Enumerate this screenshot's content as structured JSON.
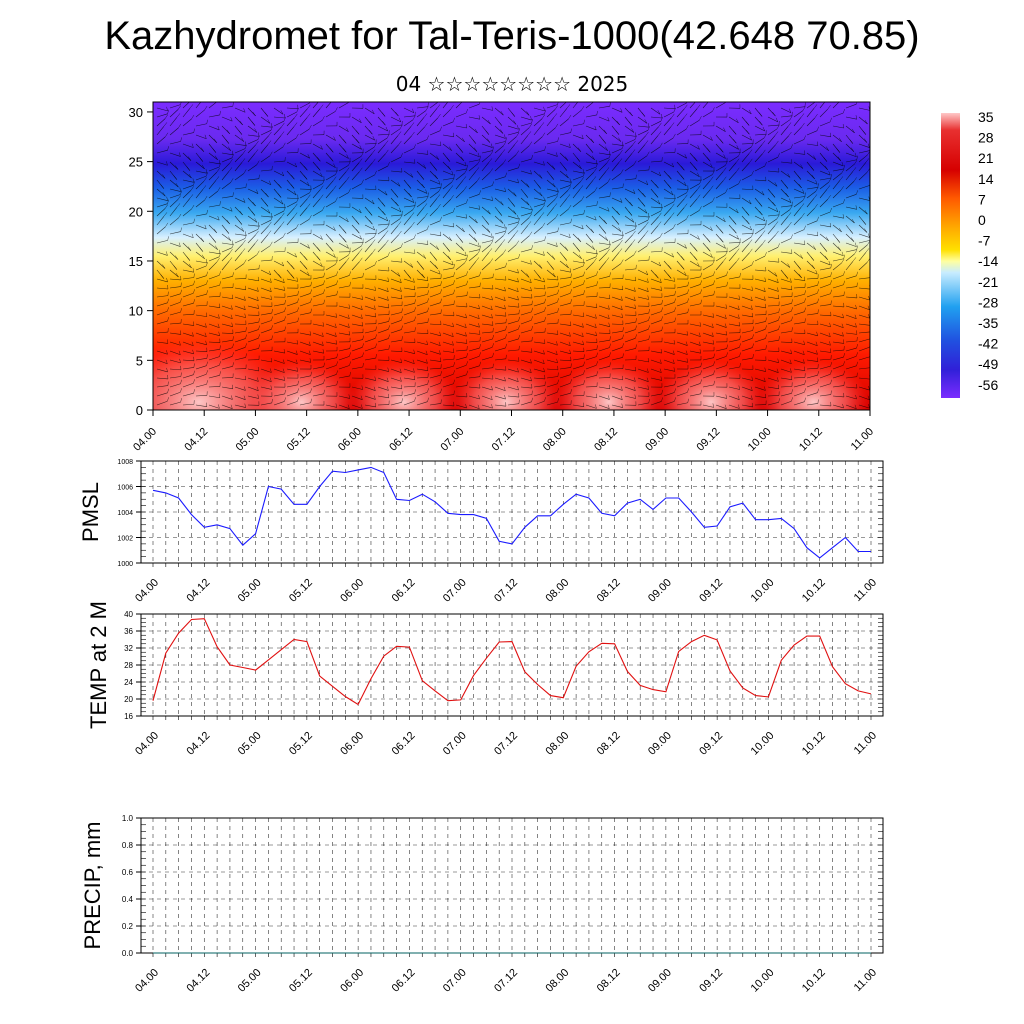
{
  "title": "Kazhydromet for Tal-Teris-1000(42.648 70.85)",
  "subtitle": "04 ☆☆☆☆☆☆☆☆ 2025",
  "colors": {
    "pmsl_line": "#1a1aff",
    "temp_line": "#e01010",
    "precip_line": "#006060",
    "wind_barb": "#000000"
  },
  "chart_data": [
    {
      "type": "heatmap",
      "name": "vertical-temperature-section",
      "x_ticks": [
        "04.00",
        "04.12",
        "05.00",
        "05.12",
        "06.00",
        "06.12",
        "07.00",
        "07.12",
        "08.00",
        "08.12",
        "09.00",
        "09.12",
        "10.00",
        "10.12",
        "11.00"
      ],
      "y_ticks": [
        "0",
        "5",
        "10",
        "15",
        "20",
        "25",
        "30"
      ],
      "ylim": [
        0,
        31
      ],
      "colorbar_labels": [
        "35",
        "28",
        "21",
        "14",
        "7",
        "0",
        "-7",
        "-14",
        "-21",
        "-28",
        "-35",
        "-42",
        "-49",
        "-56"
      ],
      "colorbar_range": [
        -60,
        38
      ],
      "overlay": "wind barbs"
    },
    {
      "type": "line",
      "name": "pmsl",
      "ylabel": "PMSL",
      "ylim": [
        1000,
        1008
      ],
      "y_ticks": [
        "1000",
        "1002",
        "1004",
        "1006",
        "1008"
      ],
      "x_ticks": [
        "04.00",
        "04.12",
        "05.00",
        "05.12",
        "06.00",
        "06.12",
        "07.00",
        "07.12",
        "08.00",
        "08.12",
        "09.00",
        "09.12",
        "10.00",
        "10.12",
        "11.00"
      ],
      "grid": true,
      "values": [
        1005.7,
        1005.5,
        1005.1,
        1003.8,
        1002.8,
        1003.0,
        1002.7,
        1001.4,
        1002.3,
        1006.0,
        1005.8,
        1004.6,
        1004.6,
        1006.0,
        1007.2,
        1007.1,
        1007.3,
        1007.5,
        1007.1,
        1005.0,
        1004.9,
        1005.4,
        1004.8,
        1003.9,
        1003.8,
        1003.8,
        1003.5,
        1001.7,
        1001.5,
        1002.8,
        1003.7,
        1003.7,
        1004.6,
        1005.4,
        1005.1,
        1003.9,
        1003.7,
        1004.7,
        1005.0,
        1004.2,
        1005.1,
        1005.1,
        1004.0,
        1002.8,
        1002.9,
        1004.4,
        1004.7,
        1003.4,
        1003.4,
        1003.5,
        1002.7,
        1001.2,
        1000.4,
        1001.2,
        1002.0,
        1000.9,
        1000.9
      ]
    },
    {
      "type": "line",
      "name": "temp-2m",
      "ylabel": "TEMP at 2 M",
      "ylim": [
        16,
        40
      ],
      "y_ticks": [
        "16",
        "20",
        "24",
        "28",
        "32",
        "36",
        "40"
      ],
      "x_ticks": [
        "04.00",
        "04.12",
        "05.00",
        "05.12",
        "06.00",
        "06.12",
        "07.00",
        "07.12",
        "08.00",
        "08.12",
        "09.00",
        "09.12",
        "10.00",
        "10.12",
        "11.00"
      ],
      "grid": true,
      "values": [
        19.6,
        30.8,
        35.5,
        38.7,
        38.9,
        32.3,
        28.0,
        27.4,
        26.8,
        29.2,
        31.6,
        34.0,
        33.5,
        25.4,
        23.0,
        20.6,
        18.7,
        24.8,
        30.1,
        32.4,
        32.2,
        24.3,
        21.9,
        19.6,
        19.8,
        25.5,
        29.6,
        33.4,
        33.5,
        26.4,
        23.4,
        20.8,
        20.3,
        27.7,
        31.1,
        33.1,
        33.0,
        26.5,
        23.2,
        22.2,
        21.7,
        31.2,
        33.5,
        35.0,
        33.9,
        26.6,
        22.6,
        20.8,
        20.5,
        29.1,
        32.7,
        34.8,
        34.8,
        27.6,
        23.6,
        21.9,
        21.2
      ]
    },
    {
      "type": "line",
      "name": "precip",
      "ylabel": "PRECIP, mm",
      "ylim": [
        0,
        1
      ],
      "y_ticks": [
        "0.0",
        "0.2",
        "0.4",
        "0.6",
        "0.8",
        "1.0"
      ],
      "x_ticks": [
        "04.00",
        "04.12",
        "05.00",
        "05.12",
        "06.00",
        "06.12",
        "07.00",
        "07.12",
        "08.00",
        "08.12",
        "09.00",
        "09.12",
        "10.00",
        "10.12",
        "11.00"
      ],
      "grid": true,
      "values": [
        0,
        0,
        0,
        0,
        0,
        0,
        0,
        0,
        0,
        0,
        0,
        0,
        0,
        0,
        0,
        0,
        0,
        0,
        0,
        0,
        0,
        0,
        0,
        0,
        0,
        0,
        0,
        0,
        0,
        0,
        0,
        0,
        0,
        0,
        0,
        0,
        0,
        0,
        0,
        0,
        0,
        0,
        0,
        0,
        0,
        0,
        0,
        0,
        0,
        0,
        0,
        0,
        0,
        0,
        0,
        0,
        0
      ]
    }
  ]
}
